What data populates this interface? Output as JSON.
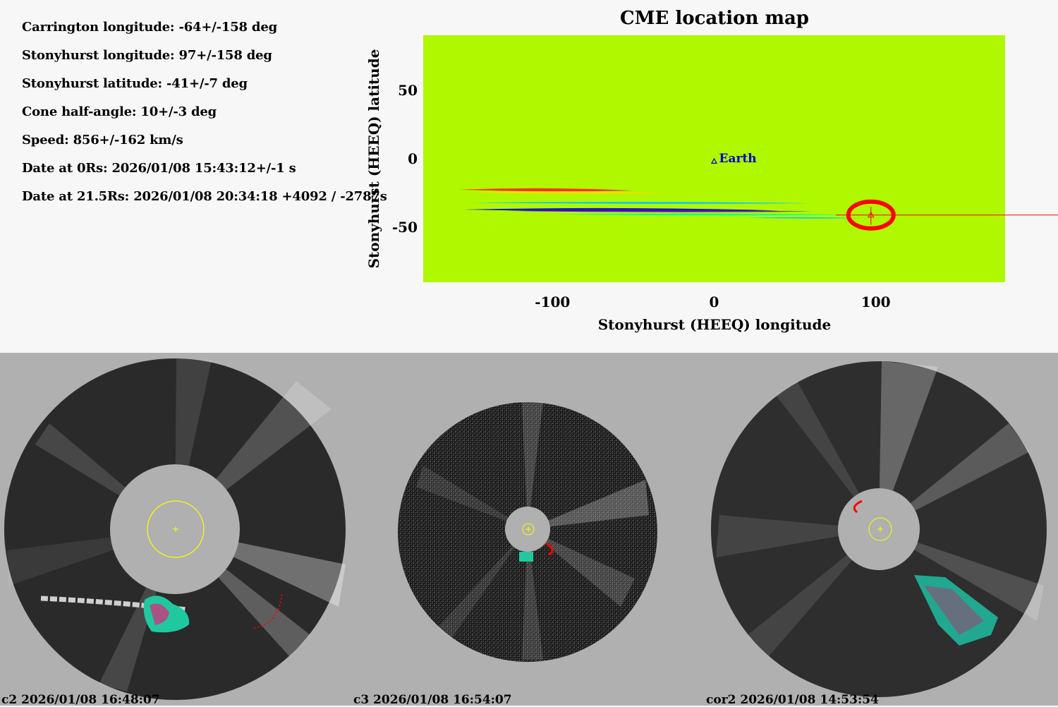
{
  "parameters": {
    "carrington_longitude": "Carrington longitude: -64+/-158 deg",
    "stonyhurst_longitude": "Stonyhurst longitude: 97+/-158 deg",
    "stonyhurst_latitude": "Stonyhurst latitude: -41+/-7 deg",
    "cone_half_angle": "Cone half-angle: 10+/-3 deg",
    "speed": "Speed: 856+/-162 km/s",
    "date_0rs": "Date at 0Rs: 2026/01/08 15:43:12+/-1 s",
    "date_21rs": "Date at 21.5Rs: 2026/01/08 20:34:18 +4092 / -2787s"
  },
  "colors": {
    "map_background": "#b0f800",
    "marker": "#ff0000",
    "earth": "#0000c8",
    "sun_circle": "#ffff00",
    "bottom_background": "#b0b0b0"
  },
  "chart_data": {
    "type": "heatmap",
    "title": "CME location map",
    "xlabel": "Stonyhurst (HEEQ) longitude",
    "ylabel": "Stonyhurst (HEEQ) latitude",
    "xlim": [
      -180,
      180
    ],
    "ylim": [
      -90,
      90
    ],
    "xticks": [
      -100,
      0,
      100
    ],
    "yticks": [
      50,
      0,
      -50
    ],
    "earth": {
      "label": "Earth",
      "lon": 0,
      "lat": -2
    },
    "cme": {
      "lon": 97,
      "lat": -41
    },
    "bands": [
      {
        "color": "#ff2000",
        "lat": -22.5,
        "lon_start": -158,
        "lon_end": -50,
        "thickness": 2.2
      },
      {
        "color": "#ffd800",
        "lat": -24.5,
        "lon_start": -155,
        "lon_end": -30,
        "thickness": 1.8
      },
      {
        "color": "#00c8ff",
        "lat": -32,
        "lon_start": -150,
        "lon_end": 60,
        "thickness": 1.5
      },
      {
        "color": "#0000e0",
        "lat": -37,
        "lon_start": -155,
        "lon_end": 40,
        "thickness": 2.4
      },
      {
        "color": "#6000c0",
        "lat": -38,
        "lon_start": -130,
        "lon_end": 60,
        "thickness": 1.5
      },
      {
        "color": "#00ffa0",
        "lat": -40.5,
        "lon_start": -100,
        "lon_end": 85,
        "thickness": 1.3
      },
      {
        "color": "#00c8ff",
        "lat": -43,
        "lon_start": 20,
        "lon_end": 90,
        "thickness": 1
      }
    ]
  },
  "images": [
    {
      "label": "c2 2026/01/08 16:48:07"
    },
    {
      "label": "c3 2026/01/08 16:54:07"
    },
    {
      "label": "cor2 2026/01/08 14:53:54"
    }
  ]
}
